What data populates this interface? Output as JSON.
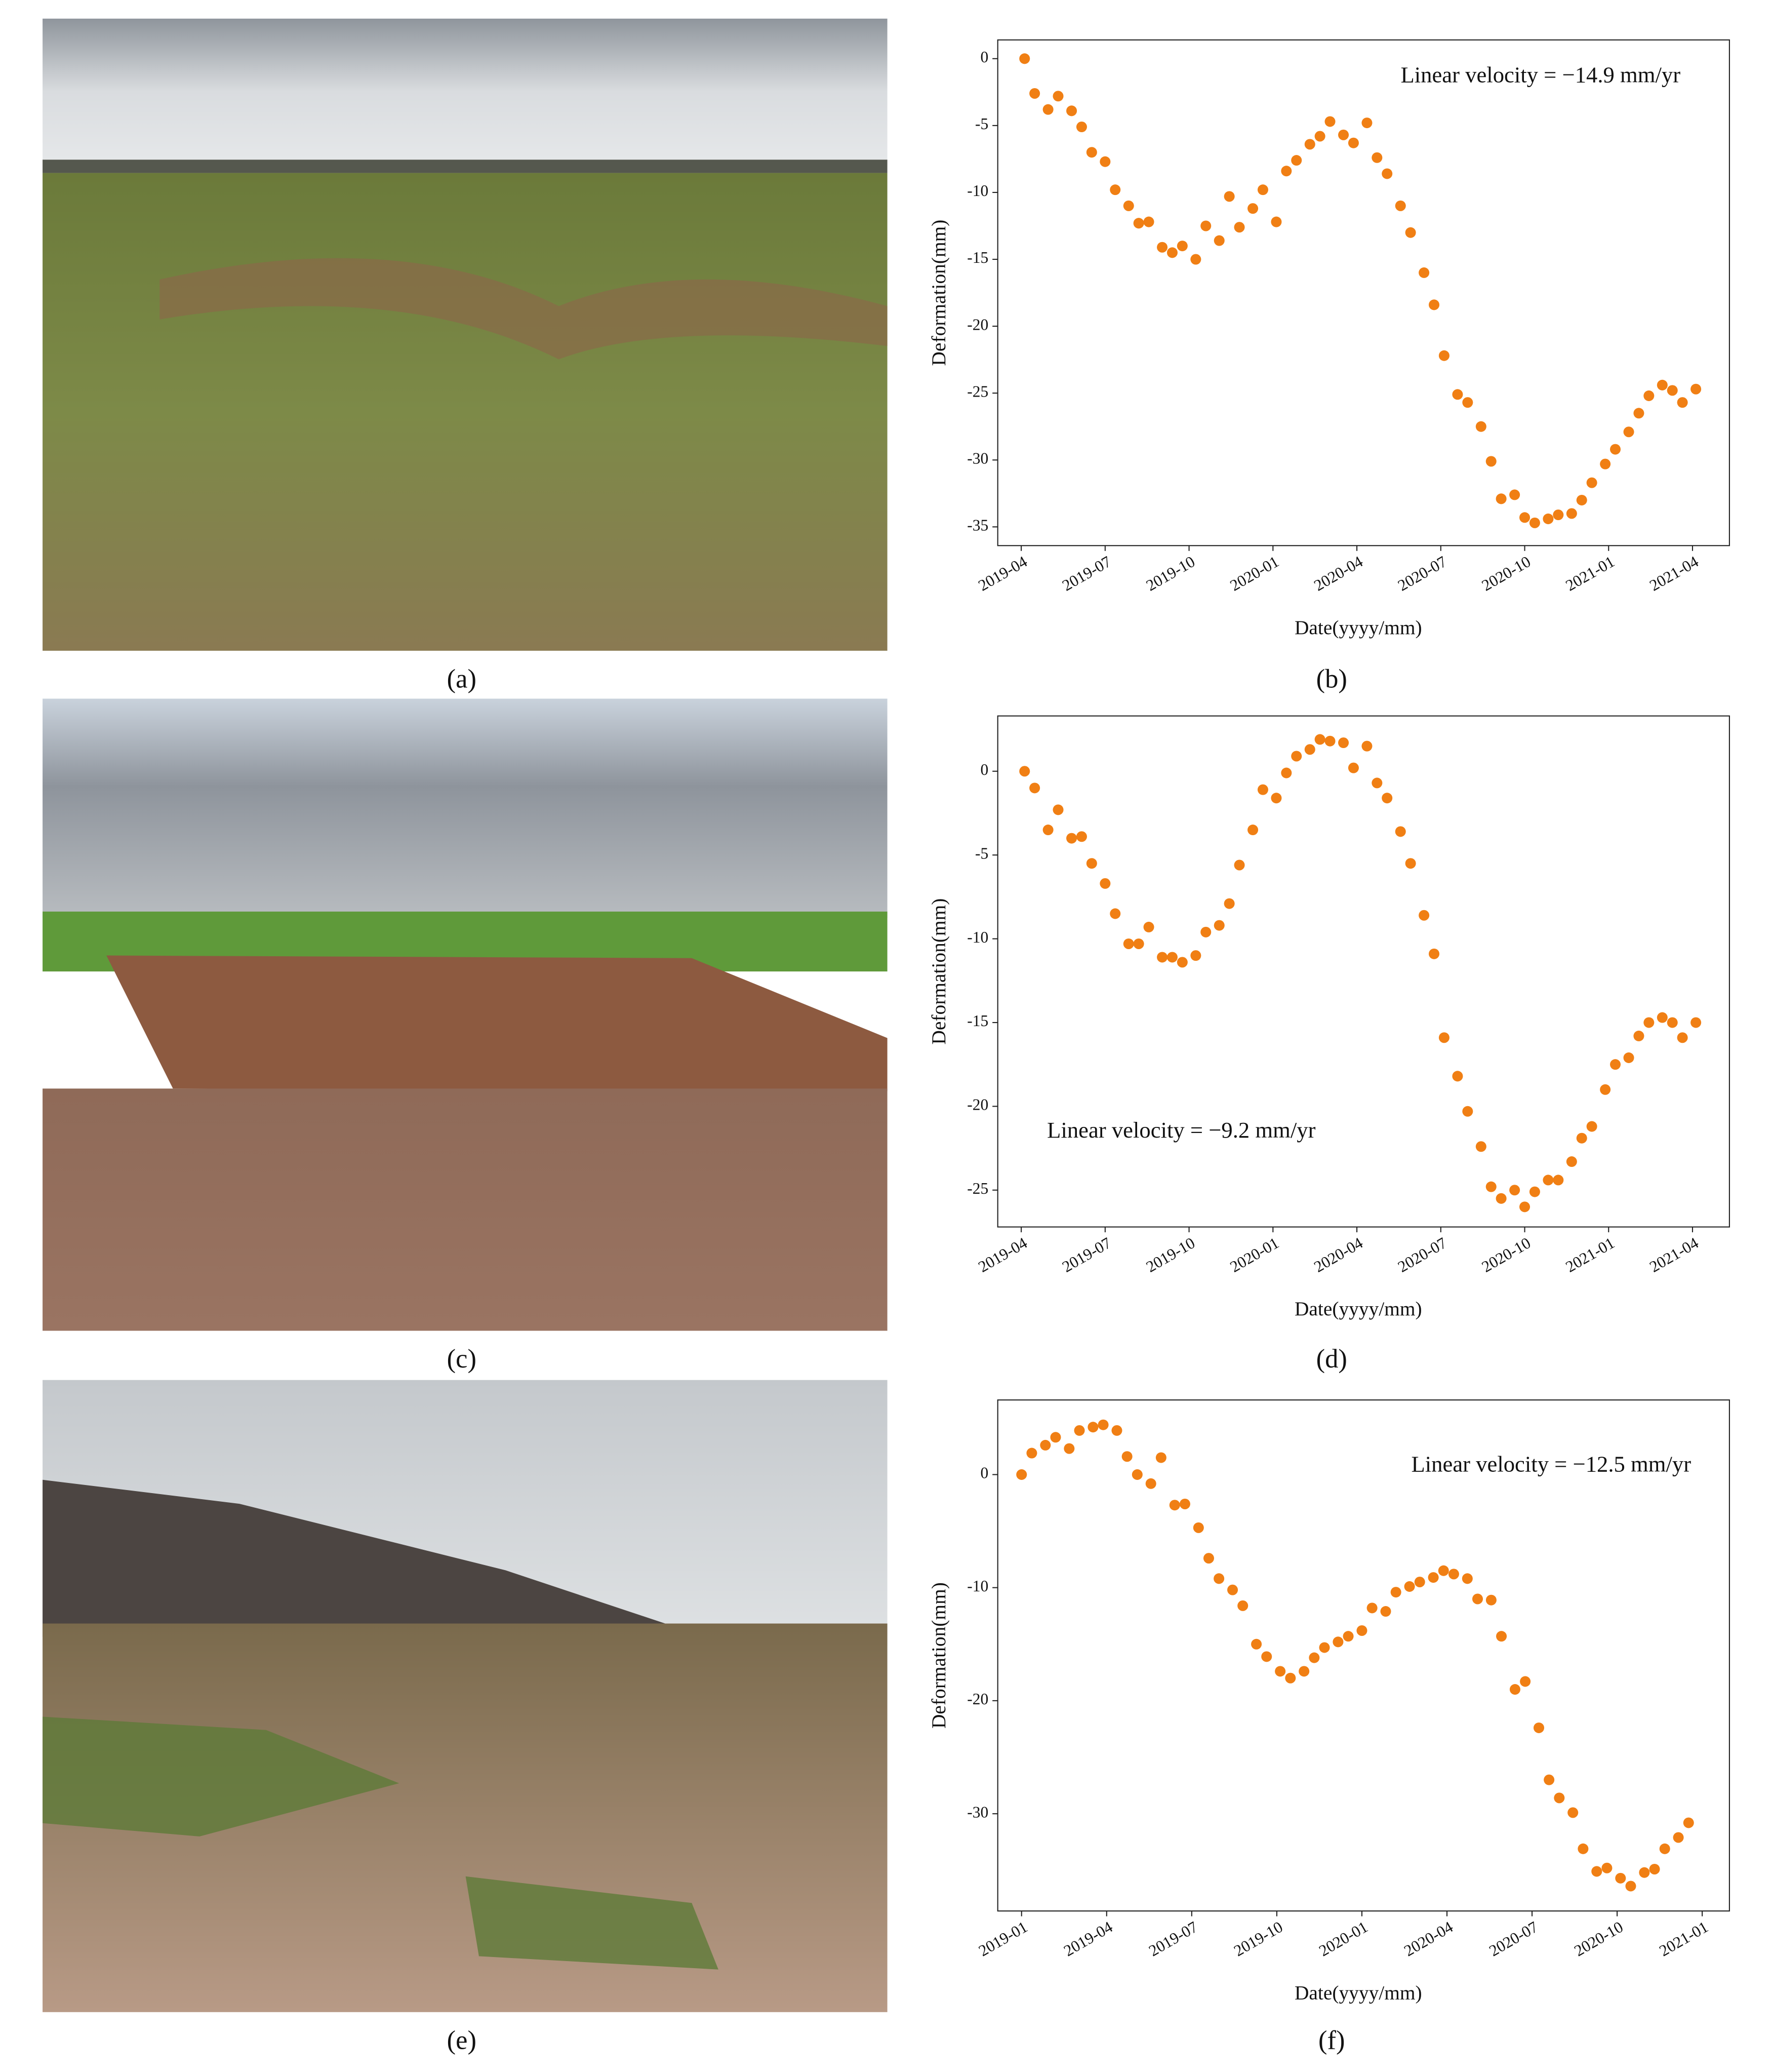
{
  "captions": [
    "(a)",
    "(b)",
    "(c)",
    "(d)",
    "(e)",
    "(f)"
  ],
  "chart_data": [
    {
      "type": "scatter",
      "annotation": "Linear velocity = −14.9 mm/yr",
      "xlabel": "Date(yyyy/mm)",
      "ylabel": "Deformation(mm)",
      "color": "#f07f14",
      "x": [
        2019.26,
        2019.29,
        2019.33,
        2019.36,
        2019.4,
        2019.43,
        2019.46,
        2019.5,
        2019.53,
        2019.57,
        2019.6,
        2019.63,
        2019.67,
        2019.7,
        2019.73,
        2019.77,
        2019.8,
        2019.84,
        2019.87,
        2019.9,
        2019.94,
        2019.97,
        2020.01,
        2020.04,
        2020.07,
        2020.11,
        2020.14,
        2020.17,
        2020.21,
        2020.24,
        2020.28,
        2020.31,
        2020.34,
        2020.38,
        2020.41,
        2020.45,
        2020.48,
        2020.51,
        2020.55,
        2020.58,
        2020.62,
        2020.65,
        2020.68,
        2020.72,
        2020.75,
        2020.78,
        2020.82,
        2020.85,
        2020.89,
        2020.92,
        2020.95,
        2020.99,
        2021.02,
        2021.06,
        2021.09,
        2021.12,
        2021.16,
        2021.19,
        2021.22,
        2021.26
      ],
      "values": [
        0,
        -2.6,
        -3.8,
        -2.8,
        -3.9,
        -5.1,
        -7.0,
        -7.7,
        -9.8,
        -11.0,
        -12.3,
        -12.2,
        -14.1,
        -14.5,
        -14.0,
        -15.0,
        -12.5,
        -13.6,
        -10.3,
        -12.6,
        -11.2,
        -9.8,
        -12.2,
        -8.4,
        -7.6,
        -6.4,
        -5.8,
        -4.7,
        -5.7,
        -6.3,
        -4.8,
        -7.4,
        -8.6,
        -11.0,
        -13.0,
        -16.0,
        -18.4,
        -22.2,
        -25.1,
        -25.7,
        -27.5,
        -30.1,
        -32.9,
        -32.6,
        -34.3,
        -34.7,
        -34.4,
        -34.1,
        -34.0,
        -33.0,
        -31.7,
        -30.3,
        -29.2,
        -27.9,
        -26.5,
        -25.2,
        -24.4,
        -24.8,
        -25.7,
        -24.7
      ],
      "xlim": [
        2019.18,
        2021.36
      ],
      "ylim": [
        -36.4,
        1.4
      ],
      "xticks": [
        {
          "value": 2019.25,
          "label": "2019-04"
        },
        {
          "value": 2019.5,
          "label": "2019-07"
        },
        {
          "value": 2019.75,
          "label": "2019-10"
        },
        {
          "value": 2020.0,
          "label": "2020-01"
        },
        {
          "value": 2020.25,
          "label": "2020-04"
        },
        {
          "value": 2020.5,
          "label": "2020-07"
        },
        {
          "value": 2020.75,
          "label": "2020-10"
        },
        {
          "value": 2021.0,
          "label": "2021-01"
        },
        {
          "value": 2021.25,
          "label": "2021-04"
        }
      ],
      "yticks": [
        0,
        -5,
        -10,
        -15,
        -20,
        -25,
        -30,
        -35
      ]
    },
    {
      "type": "scatter",
      "annotation": "Linear velocity = −9.2 mm/yr",
      "xlabel": "Date(yyyy/mm)",
      "ylabel": "Deformation(mm)",
      "color": "#f07f14",
      "x": [
        2019.26,
        2019.29,
        2019.33,
        2019.36,
        2019.4,
        2019.43,
        2019.46,
        2019.5,
        2019.53,
        2019.57,
        2019.6,
        2019.63,
        2019.67,
        2019.7,
        2019.73,
        2019.77,
        2019.8,
        2019.84,
        2019.87,
        2019.9,
        2019.94,
        2019.97,
        2020.01,
        2020.04,
        2020.07,
        2020.11,
        2020.14,
        2020.17,
        2020.21,
        2020.24,
        2020.28,
        2020.31,
        2020.34,
        2020.38,
        2020.41,
        2020.45,
        2020.48,
        2020.51,
        2020.55,
        2020.58,
        2020.62,
        2020.65,
        2020.68,
        2020.72,
        2020.75,
        2020.78,
        2020.82,
        2020.85,
        2020.89,
        2020.92,
        2020.95,
        2020.99,
        2021.02,
        2021.06,
        2021.09,
        2021.12,
        2021.16,
        2021.19,
        2021.22,
        2021.26
      ],
      "values": [
        0,
        -1,
        -3.5,
        -2.3,
        -4,
        -3.9,
        -5.5,
        -6.7,
        -8.5,
        -10.3,
        -10.3,
        -9.3,
        -11.1,
        -11.1,
        -11.4,
        -11,
        -9.6,
        -9.2,
        -7.9,
        -5.6,
        -3.5,
        -1.1,
        -1.6,
        -0.1,
        0.9,
        1.3,
        1.9,
        1.8,
        1.7,
        0.2,
        1.5,
        -0.7,
        -1.6,
        -3.6,
        -5.5,
        -8.6,
        -10.9,
        -15.9,
        -18.2,
        -20.3,
        -22.4,
        -24.8,
        -25.5,
        -25,
        -26,
        -25.1,
        -24.4,
        -24.4,
        -23.3,
        -21.9,
        -21.2,
        -19,
        -17.5,
        -17.1,
        -15.8,
        -15,
        -14.7,
        -15,
        -15.9,
        -15
      ],
      "xlim": [
        2019.18,
        2021.36
      ],
      "ylim": [
        -27.2,
        3.3
      ],
      "xticks": [
        {
          "value": 2019.25,
          "label": "2019-04"
        },
        {
          "value": 2019.5,
          "label": "2019-07"
        },
        {
          "value": 2019.75,
          "label": "2019-10"
        },
        {
          "value": 2020.0,
          "label": "2020-01"
        },
        {
          "value": 2020.25,
          "label": "2020-04"
        },
        {
          "value": 2020.5,
          "label": "2020-07"
        },
        {
          "value": 2020.75,
          "label": "2020-10"
        },
        {
          "value": 2021.0,
          "label": "2021-01"
        },
        {
          "value": 2021.25,
          "label": "2021-04"
        }
      ],
      "yticks": [
        0,
        -5,
        -10,
        -15,
        -20,
        -25
      ]
    },
    {
      "type": "scatter",
      "annotation": "Linear velocity = −12.5 mm/yr",
      "xlabel": "Date(yyyy/mm)",
      "ylabel": "Deformation(mm)",
      "color": "#f07f14",
      "x": [
        2019.0,
        2019.03,
        2019.07,
        2019.1,
        2019.14,
        2019.17,
        2019.21,
        2019.24,
        2019.28,
        2019.31,
        2019.34,
        2019.38,
        2019.41,
        2019.45,
        2019.48,
        2019.52,
        2019.55,
        2019.58,
        2019.62,
        2019.65,
        2019.69,
        2019.72,
        2019.76,
        2019.79,
        2019.83,
        2019.86,
        2019.89,
        2019.93,
        2019.96,
        2020.0,
        2020.03,
        2020.07,
        2020.1,
        2020.14,
        2020.17,
        2020.21,
        2020.24,
        2020.27,
        2020.31,
        2020.34,
        2020.38,
        2020.41,
        2020.45,
        2020.48,
        2020.52,
        2020.55,
        2020.58,
        2020.62,
        2020.65,
        2020.69,
        2020.72,
        2020.76,
        2020.79,
        2020.83,
        2020.86,
        2020.89,
        2020.93,
        2020.96
      ],
      "values": [
        0,
        1.9,
        2.6,
        3.3,
        2.3,
        3.9,
        4.2,
        4.4,
        3.9,
        1.6,
        0,
        -0.8,
        1.5,
        -2.7,
        -2.6,
        -4.7,
        -7.4,
        -9.2,
        -10.2,
        -11.6,
        -15,
        -16.1,
        -17.4,
        -18,
        -17.4,
        -16.2,
        -15.3,
        -14.8,
        -14.3,
        -13.8,
        -11.8,
        -12.1,
        -10.4,
        -9.9,
        -9.5,
        -9.1,
        -8.5,
        -8.8,
        -9.2,
        -11,
        -11.1,
        -14.3,
        -19,
        -18.3,
        -22.4,
        -27,
        -28.6,
        -29.9,
        -33.1,
        -35.1,
        -34.8,
        -35.7,
        -36.4,
        -35.2,
        -34.9,
        -33.1,
        -32.1,
        -30.8
      ],
      "xlim": [
        2018.93,
        2021.08
      ],
      "ylim": [
        -38.6,
        6.6
      ],
      "xticks": [
        {
          "value": 2019.0,
          "label": "2019-01"
        },
        {
          "value": 2019.25,
          "label": "2019-04"
        },
        {
          "value": 2019.5,
          "label": "2019-07"
        },
        {
          "value": 2019.75,
          "label": "2019-10"
        },
        {
          "value": 2020.0,
          "label": "2020-01"
        },
        {
          "value": 2020.25,
          "label": "2020-04"
        },
        {
          "value": 2020.5,
          "label": "2020-07"
        },
        {
          "value": 2020.75,
          "label": "2020-10"
        },
        {
          "value": 2021.0,
          "label": "2021-01"
        }
      ],
      "yticks": [
        0,
        -10,
        -20,
        -30
      ]
    }
  ]
}
